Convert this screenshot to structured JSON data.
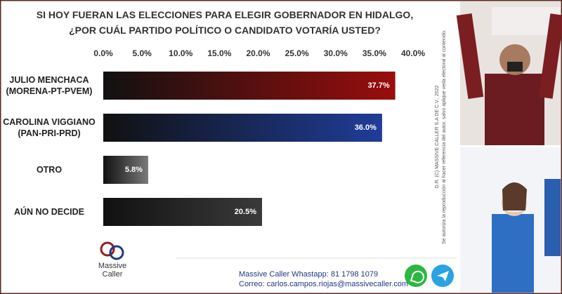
{
  "chart_data": {
    "type": "hbar",
    "title": "SI HOY FUERAN LAS ELECCIONES PARA ELEGIR GOBERNADOR EN HIDALGO,\n¿POR CUÁL  PARTIDO POLÍTICO O CANDIDATO VOTARÍA USTED?",
    "categories": [
      "JULIO MENCHACA\n(MORENA-PT-PVEM)",
      "CAROLINA VIGGIANO\n(PAN-PRI-PRD)",
      "OTRO",
      "AÚN NO DECIDE"
    ],
    "values": [
      37.7,
      36.0,
      5.8,
      20.5
    ],
    "value_labels": [
      "37.7%",
      "36.0%",
      "5.8%",
      "20.5%"
    ],
    "colors": [
      "#9a0d0d",
      "#1f3d99",
      "#7a7a7a",
      "#3a3a3a"
    ],
    "xlim": [
      0,
      40
    ],
    "xticks": [
      {
        "value": 0,
        "label": "0.0%"
      },
      {
        "value": 5,
        "label": "5.0%"
      },
      {
        "value": 10,
        "label": "10.0%"
      },
      {
        "value": 15,
        "label": "15.0%"
      },
      {
        "value": 20,
        "label": "20.0%"
      },
      {
        "value": 25,
        "label": "25.0%"
      },
      {
        "value": 30,
        "label": "30.0%"
      },
      {
        "value": 35,
        "label": "35.0%"
      },
      {
        "value": 40,
        "label": "40.0%"
      }
    ],
    "grid": false
  },
  "credits": [
    "D.R. (C) MASSIVE CALLER S.A DE C.V., 2022",
    "Se autoriza la reproducción al hacer referencia del autor, salvo aplique veda electoral al contenido."
  ],
  "logo": "Massive\nCaller",
  "footer": [
    "Massive Caller Whastapp: 81 1798 1079",
    "Correo: carlos.campos.riojas@massivecaller.com"
  ]
}
